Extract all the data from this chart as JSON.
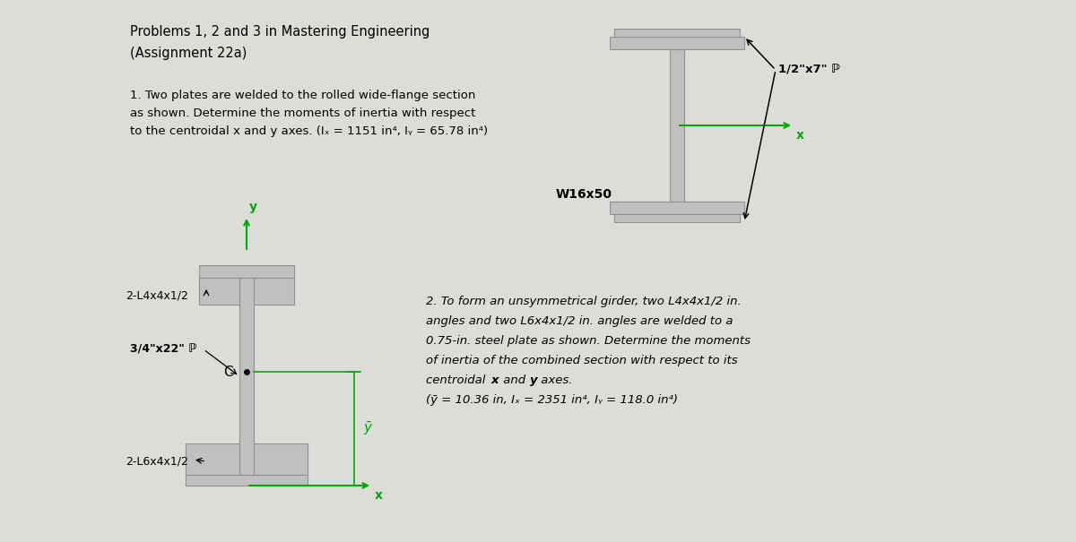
{
  "bg_color": "#dcdcd8",
  "steel_color": "#c0c0c0",
  "steel_edge": "#909090",
  "axis_color": "#00aa00",
  "font_size_title": 10.5,
  "font_size_body": 9.5,
  "font_size_label": 9,
  "title_line1": "Problems 1, 2 and 3 in Mastering Engineering",
  "title_line2": "(Assignment 22a)",
  "prob1_lines": [
    "1. Two plates are welded to the rolled wide-flange section",
    "as shown. Determine the moments of inertia with respect  W16x50",
    "to the centroidal x and y axes. (Iₓ = 1151 in⁴, Iᵧ = 65.78 in⁴)"
  ],
  "prob2_lines": [
    "2. To form an unsymmetrical girder, two L4x4x1/2 in.",
    "angles and two L6x4x1/2 in. angles are welded to a",
    "0.75-in. steel plate as shown. Determine the moments",
    "of inertia of the combined section with respect to its",
    "centroidal x and y axes.",
    "(ȳ = 10.36 in, Iₓ = 2351 in⁴, Iᵧ = 118.0 in⁴)"
  ]
}
